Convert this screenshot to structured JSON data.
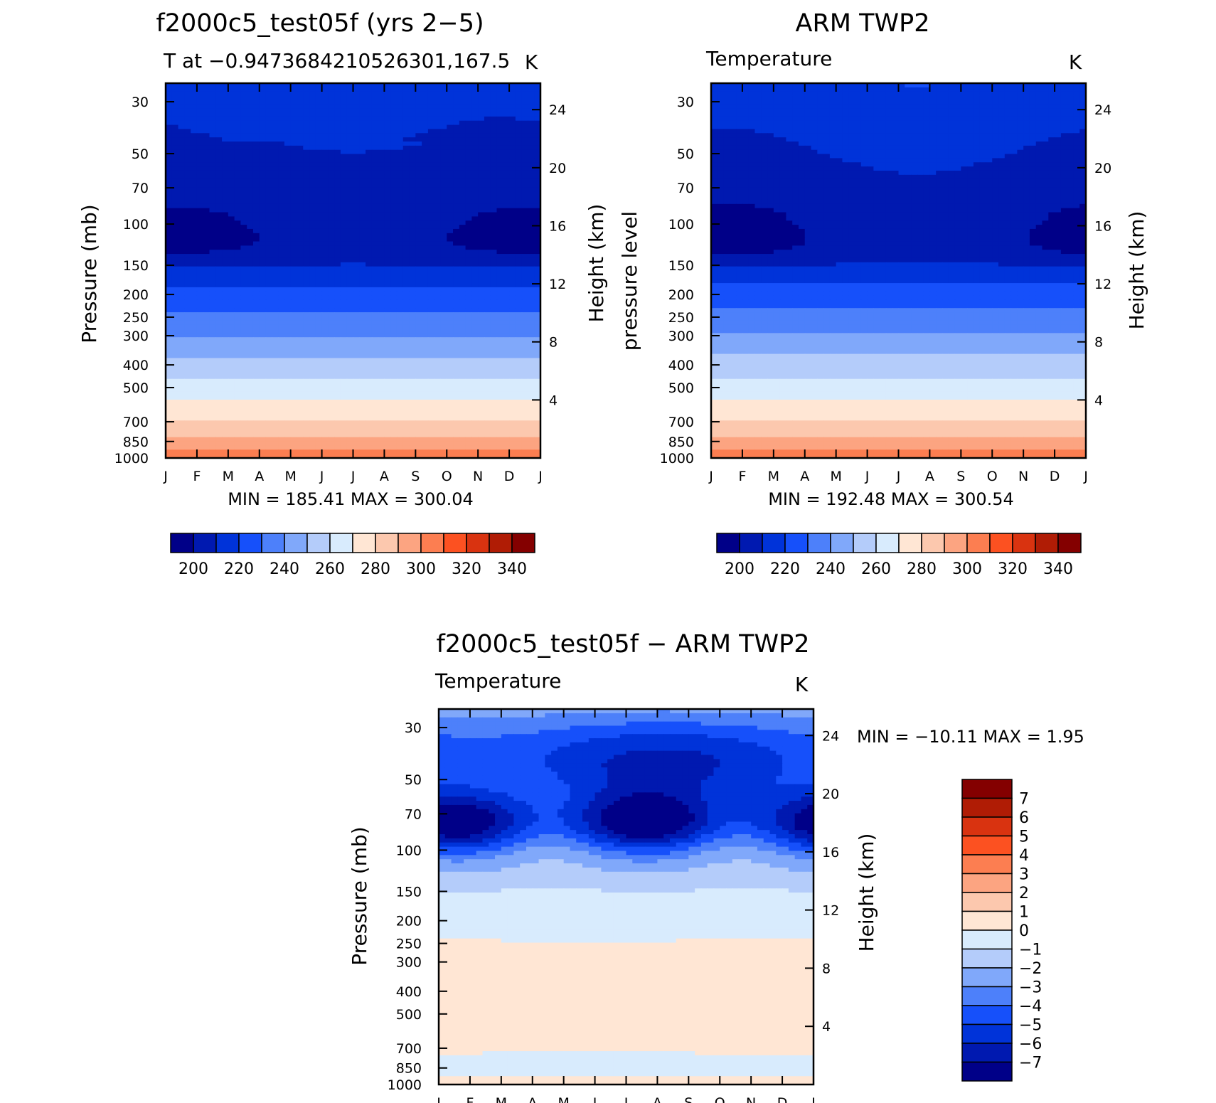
{
  "colors": {
    "abs_scale": [
      "#000088",
      "#0019b0",
      "#0033d9",
      "#1650fa",
      "#4d80fa",
      "#80a8fa",
      "#b4ccfa",
      "#d8ebfd",
      "#ffe6d4",
      "#fcc8ae",
      "#fca481",
      "#fc7e51",
      "#fc5121",
      "#d93310",
      "#b01c05",
      "#840000"
    ],
    "diff_scale": [
      "#000088",
      "#0019b0",
      "#0033d9",
      "#1650fa",
      "#4d80fa",
      "#80a8fa",
      "#b4ccfa",
      "#d8ebfd",
      "#ffe6d4",
      "#fcc8ae",
      "#fca481",
      "#fc7e51",
      "#fc5121",
      "#d93310",
      "#b01c05",
      "#840000"
    ]
  },
  "panels": {
    "model": {
      "title": "f2000c5_test05f (yrs 2−5)",
      "subtitle": "T at −0.9473684210526301,167.5",
      "units": "K",
      "ylabel_left": "Pressure (mb)",
      "ylabel_right": "Height (km)",
      "stats": "MIN = 185.41  MAX = 300.04",
      "colorbar_labels": [
        "200",
        "220",
        "240",
        "260",
        "280",
        "300",
        "320",
        "340"
      ]
    },
    "obs": {
      "title": "ARM TWP2",
      "subtitle": "Temperature",
      "units": "K",
      "ylabel_left": "pressure level",
      "ylabel_right": "Height (km)",
      "stats": "MIN = 192.48  MAX = 300.54",
      "colorbar_labels": [
        "200",
        "220",
        "240",
        "260",
        "280",
        "300",
        "320",
        "340"
      ]
    },
    "diff": {
      "title": "f2000c5_test05f − ARM TWP2",
      "subtitle": "Temperature",
      "units": "K",
      "ylabel_left": "Pressure (mb)",
      "ylabel_right": "Height (km)",
      "stats": "MIN = −10.11  MAX =     1.95",
      "colorbar_labels": [
        "7",
        "6",
        "5",
        "4",
        "3",
        "2",
        "1",
        "0",
        "−1",
        "−2",
        "−3",
        "−4",
        "−5",
        "−6",
        "−7"
      ]
    }
  },
  "chart_data": [
    {
      "type": "heatmap",
      "title": "f2000c5_test05f (yrs 2−5)",
      "subtitle": "T at −0.9473684210526301,167.5",
      "x_ticks": [
        "J",
        "F",
        "M",
        "A",
        "M",
        "J",
        "J",
        "A",
        "S",
        "O",
        "N",
        "D",
        "J"
      ],
      "y_ticks_pressure": [
        "30",
        "50",
        "70",
        "100",
        "150",
        "200",
        "250",
        "300",
        "400",
        "500",
        "700",
        "850",
        "1000"
      ],
      "y_ticks_height": [
        "24",
        "20",
        "16",
        "12",
        "8",
        "4"
      ],
      "y_scale": "log pressure",
      "levels": [
        190,
        200,
        210,
        220,
        230,
        240,
        250,
        260,
        270,
        280,
        290,
        300,
        310,
        320,
        330,
        340
      ],
      "min": 185.41,
      "max": 300.04,
      "units": "K"
    },
    {
      "type": "heatmap",
      "title": "ARM TWP2",
      "subtitle": "Temperature",
      "x_ticks": [
        "J",
        "F",
        "M",
        "A",
        "M",
        "J",
        "J",
        "A",
        "S",
        "O",
        "N",
        "D",
        "J"
      ],
      "y_ticks_pressure": [
        "30",
        "50",
        "70",
        "100",
        "150",
        "200",
        "250",
        "300",
        "400",
        "500",
        "700",
        "850",
        "1000"
      ],
      "y_ticks_height": [
        "24",
        "20",
        "16",
        "12",
        "8",
        "4"
      ],
      "y_scale": "log pressure",
      "levels": [
        190,
        200,
        210,
        220,
        230,
        240,
        250,
        260,
        270,
        280,
        290,
        300,
        310,
        320,
        330,
        340
      ],
      "min": 192.48,
      "max": 300.54,
      "units": "K"
    },
    {
      "type": "heatmap",
      "title": "f2000c5_test05f − ARM TWP2",
      "subtitle": "Temperature",
      "x_ticks": [
        "J",
        "F",
        "M",
        "A",
        "M",
        "J",
        "J",
        "A",
        "S",
        "O",
        "N",
        "D",
        "J"
      ],
      "y_ticks_pressure": [
        "30",
        "50",
        "70",
        "100",
        "150",
        "200",
        "250",
        "300",
        "400",
        "500",
        "700",
        "850",
        "1000"
      ],
      "y_ticks_height": [
        "24",
        "20",
        "16",
        "12",
        "8",
        "4"
      ],
      "y_scale": "log pressure",
      "levels": [
        -7,
        -6,
        -5,
        -4,
        -3,
        -2,
        -1,
        0,
        1,
        2,
        3,
        4,
        5,
        6,
        7
      ],
      "min": -10.11,
      "max": 1.95,
      "units": "K"
    }
  ]
}
